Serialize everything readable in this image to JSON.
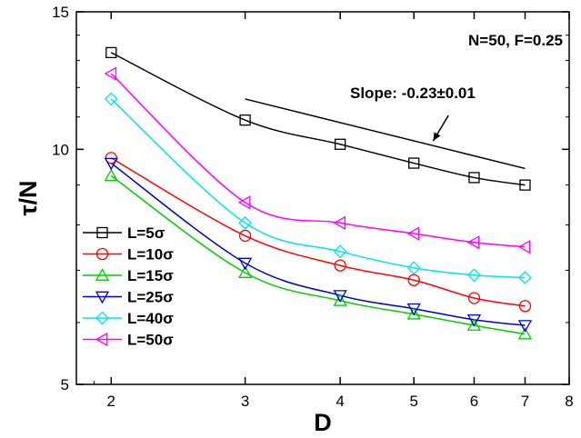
{
  "chart_data": {
    "type": "line",
    "xlabel": "D",
    "ylabel": "τ/N",
    "xscale": "log",
    "yscale": "log",
    "xlim": [
      1.8,
      8
    ],
    "ylim": [
      5,
      15
    ],
    "xticks": [
      2,
      3,
      4,
      5,
      6,
      7,
      8
    ],
    "yticks": [
      5,
      10,
      15
    ],
    "grid": false,
    "legend_position": "left",
    "annotations": {
      "params": "N=50, F=0.25",
      "slope": "Slope: -0.23±0.01"
    },
    "reference_line": {
      "x": [
        3,
        7
      ],
      "y": [
        11.6,
        9.45
      ]
    },
    "slope_arrow": {
      "from": [
        5.55,
        11.05
      ],
      "to": [
        5.3,
        10.25
      ]
    },
    "series": [
      {
        "name": "L=5σ",
        "color": "#000000",
        "marker": "square",
        "x": [
          2,
          3,
          4,
          5,
          6,
          7
        ],
        "y": [
          13.3,
          10.9,
          10.15,
          9.6,
          9.2,
          9.0
        ]
      },
      {
        "name": "L=10σ",
        "color": "#ff0000",
        "marker": "circle",
        "x": [
          2,
          3,
          4,
          5,
          6,
          7
        ],
        "y": [
          9.75,
          7.75,
          7.1,
          6.8,
          6.45,
          6.3
        ]
      },
      {
        "name": "L=15σ",
        "color": "#00cc00",
        "marker": "triangle-up",
        "x": [
          2,
          3,
          4,
          5,
          6,
          7
        ],
        "y": [
          9.25,
          6.95,
          6.4,
          6.15,
          5.95,
          5.8
        ]
      },
      {
        "name": "L=25σ",
        "color": "#0000cc",
        "marker": "triangle-down",
        "x": [
          2,
          3,
          4,
          5,
          6,
          7
        ],
        "y": [
          9.6,
          7.15,
          6.5,
          6.25,
          6.05,
          5.95
        ]
      },
      {
        "name": "L=40σ",
        "color": "#00e5e5",
        "marker": "diamond",
        "x": [
          2,
          3,
          4,
          5,
          6,
          7
        ],
        "y": [
          11.6,
          8.05,
          7.4,
          7.05,
          6.9,
          6.85
        ]
      },
      {
        "name": "L=50σ",
        "color": "#ff00ff",
        "marker": "triangle-left",
        "x": [
          2,
          3,
          4,
          5,
          6,
          7
        ],
        "y": [
          12.5,
          8.55,
          8.05,
          7.8,
          7.6,
          7.5
        ]
      }
    ]
  }
}
